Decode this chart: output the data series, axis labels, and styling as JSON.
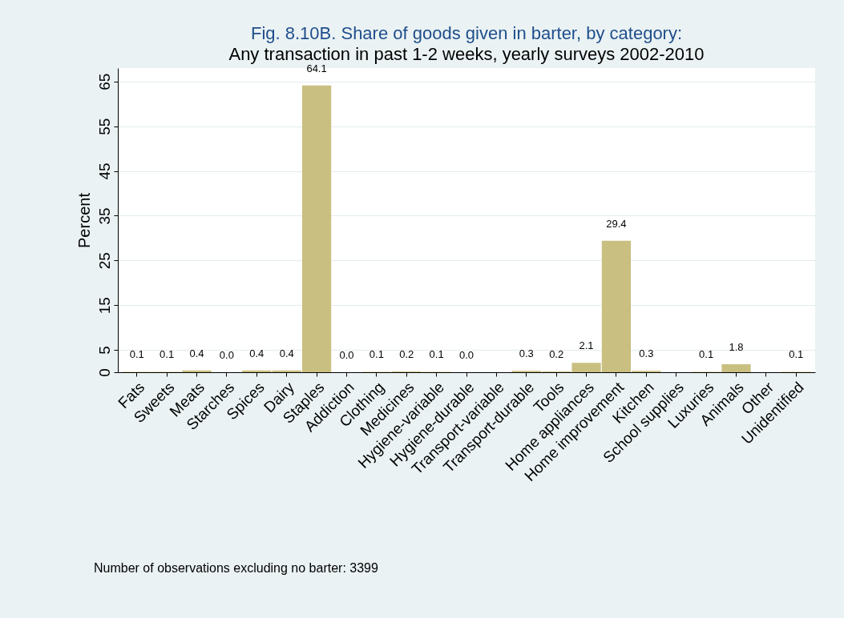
{
  "chart_data": {
    "type": "bar",
    "title": "Fig. 8.10B. Share of goods given in barter, by category:",
    "subtitle": "Any transaction in past 1-2 weeks, yearly surveys 2002-2010",
    "ylabel": "Percent",
    "categories": [
      "Fats",
      "Sweets",
      "Meats",
      "Starches",
      "Spices",
      "Dairy",
      "Staples",
      "Addiction",
      "Clothing",
      "Medicines",
      "Hygiene-variable",
      "Hygiene-durable",
      "Transport-variable",
      "Transport-durable",
      "Tools",
      "Home appliances",
      "Home improvement",
      "Kitchen",
      "School supplies",
      "Luxuries",
      "Animals",
      "Other",
      "Unidentified"
    ],
    "values": [
      0.1,
      0.1,
      0.4,
      0.0,
      0.4,
      0.4,
      64.1,
      0.0,
      0.1,
      0.2,
      0.1,
      0.0,
      null,
      0.3,
      0.2,
      2.1,
      29.4,
      0.3,
      null,
      0.1,
      1.8,
      null,
      0.1
    ],
    "value_labels": [
      "0.1",
      "0.1",
      "0.4",
      "0.0",
      "0.4",
      "0.4",
      "64.1",
      "0.0",
      "0.1",
      "0.2",
      "0.1",
      "0.0",
      null,
      "0.3",
      "0.2",
      "2.1",
      "29.4",
      "0.3",
      null,
      "0.1",
      "1.8",
      null,
      "0.1"
    ],
    "color": "#c9bf80",
    "ylim": [
      0,
      68
    ],
    "yticks": [
      0,
      5,
      15,
      25,
      35,
      45,
      55,
      65
    ],
    "grid": "y",
    "annotations": [
      "Number of observations excluding no barter: 3399"
    ]
  }
}
